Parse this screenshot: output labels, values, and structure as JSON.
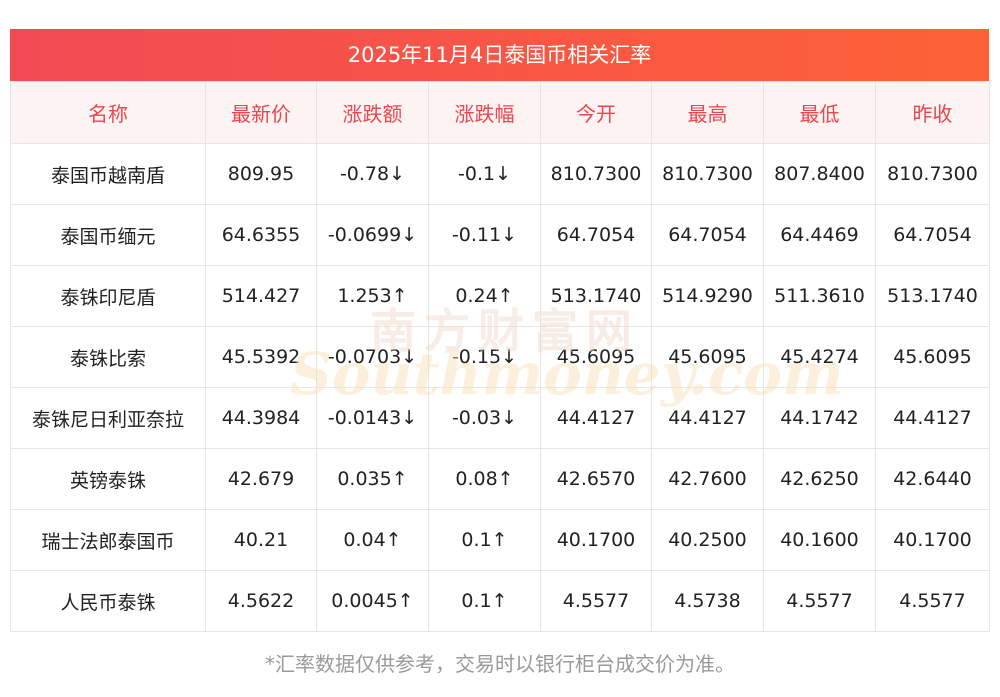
{
  "title": "2025年11月4日泰国币相关汇率",
  "columns": [
    "名称",
    "最新价",
    "涨跌额",
    "涨跌幅",
    "今开",
    "最高",
    "最低",
    "昨收"
  ],
  "rows": [
    {
      "name": "泰国币越南盾",
      "latest": "809.95",
      "change": "-0.78↓",
      "pct": "-0.1↓",
      "open": "810.7300",
      "high": "810.7300",
      "low": "807.8400",
      "prev": "810.7300",
      "dir": "down"
    },
    {
      "name": "泰国币缅元",
      "latest": "64.6355",
      "change": "-0.0699↓",
      "pct": "-0.11↓",
      "open": "64.7054",
      "high": "64.7054",
      "low": "64.4469",
      "prev": "64.7054",
      "dir": "down"
    },
    {
      "name": "泰铢印尼盾",
      "latest": "514.427",
      "change": "1.253↑",
      "pct": "0.24↑",
      "open": "513.1740",
      "high": "514.9290",
      "low": "511.3610",
      "prev": "513.1740",
      "dir": "up"
    },
    {
      "name": "泰铢比索",
      "latest": "45.5392",
      "change": "-0.0703↓",
      "pct": "-0.15↓",
      "open": "45.6095",
      "high": "45.6095",
      "low": "45.4274",
      "prev": "45.6095",
      "dir": "down"
    },
    {
      "name": "泰铢尼日利亚奈拉",
      "latest": "44.3984",
      "change": "-0.0143↓",
      "pct": "-0.03↓",
      "open": "44.4127",
      "high": "44.4127",
      "low": "44.1742",
      "prev": "44.4127",
      "dir": "down"
    },
    {
      "name": "英镑泰铢",
      "latest": "42.679",
      "change": "0.035↑",
      "pct": "0.08↑",
      "open": "42.6570",
      "high": "42.7600",
      "low": "42.6250",
      "prev": "42.6440",
      "dir": "up"
    },
    {
      "name": "瑞士法郎泰国币",
      "latest": "40.21",
      "change": "0.04↑",
      "pct": "0.1↑",
      "open": "40.1700",
      "high": "40.2500",
      "low": "40.1600",
      "prev": "40.1700",
      "dir": "up"
    },
    {
      "name": "人民币泰铢",
      "latest": "4.5622",
      "change": "0.0045↑",
      "pct": "0.1↑",
      "open": "4.5577",
      "high": "4.5738",
      "low": "4.5577",
      "prev": "4.5577",
      "dir": "up"
    }
  ],
  "footnote": "*汇率数据仅供参考，交易时以银行柜台成交价为准。",
  "watermark": {
    "cn": "南方财富网",
    "en": "Southmoney.com"
  },
  "colors": {
    "up": "#e60012",
    "down": "#0f8a1c",
    "header_text": "#e8474f",
    "title_start": "#f24a55",
    "title_end": "#fd6236"
  }
}
